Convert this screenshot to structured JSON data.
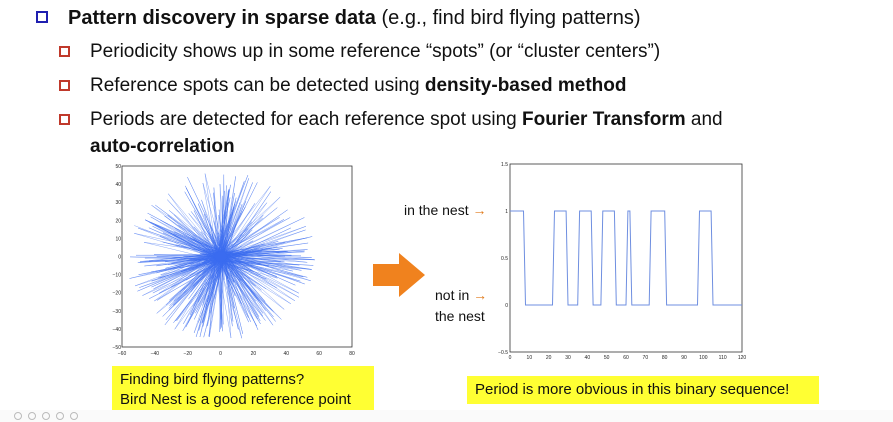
{
  "bullets": {
    "main": {
      "bold_part": "Pattern discovery in sparse data",
      "rest": " (e.g., find bird flying patterns)"
    },
    "sub1": {
      "text": "Periodicity shows up in some reference “spots” (or “cluster centers”)"
    },
    "sub2": {
      "text_plain": "Reference spots can be detected using ",
      "text_bold": "density-based method"
    },
    "sub3": {
      "line1_plain": "Periods are detected for each reference spot using ",
      "line1_bold": "Fourier Transform",
      "line1_tail": " and",
      "line2_bold": "auto-correlation"
    }
  },
  "left_plot": {
    "y_ticks": [
      "50",
      "40",
      "30",
      "20",
      "10",
      "0",
      "−10",
      "−20",
      "−30",
      "−40",
      "−50"
    ],
    "x_ticks": [
      "−60",
      "−40",
      "−20",
      "0",
      "20",
      "40",
      "60",
      "80"
    ],
    "line_color": "#3b6cf0"
  },
  "arrow_color": "#f0821e",
  "right_plot": {
    "labels": {
      "in_nest": "in the nest",
      "not_in_nest_line1": "not in",
      "not_in_nest_line2": "the nest"
    },
    "y_ticks": [
      "1.5",
      "1",
      "0.5",
      "0",
      "−0.5"
    ],
    "x_ticks": [
      "0",
      "10",
      "20",
      "30",
      "40",
      "50",
      "60",
      "70",
      "80",
      "90",
      "100",
      "110",
      "120"
    ],
    "line_color": "#6f8fe0"
  },
  "captions": {
    "left_line1": "Finding bird flying patterns?",
    "left_line2": "Bird Nest is a good reference point",
    "right": "Period is more obvious in this binary sequence!"
  },
  "chart_data": [
    {
      "type": "line",
      "title": "",
      "xlabel": "",
      "ylabel": "",
      "xlim": [
        -60,
        80
      ],
      "ylim": [
        -50,
        50
      ],
      "series": [
        {
          "values": "dense random trajectory around origin"
        }
      ]
    },
    {
      "type": "line",
      "title": "",
      "xlabel": "",
      "ylabel": "",
      "xlim": [
        0,
        120
      ],
      "ylim": [
        -0.5,
        1.5
      ],
      "x": [
        0,
        7,
        8,
        22,
        23,
        29,
        30,
        35,
        36,
        42,
        43,
        47,
        48,
        54,
        55,
        60,
        61,
        62,
        63,
        72,
        73,
        80,
        81,
        97,
        98,
        104,
        105,
        120
      ],
      "series": [
        {
          "values": [
            1,
            1,
            0,
            0,
            1,
            1,
            0,
            0,
            1,
            1,
            0,
            0,
            1,
            1,
            0,
            0,
            1,
            1,
            0,
            0,
            1,
            1,
            0,
            0,
            1,
            1,
            0,
            0
          ]
        }
      ]
    }
  ]
}
